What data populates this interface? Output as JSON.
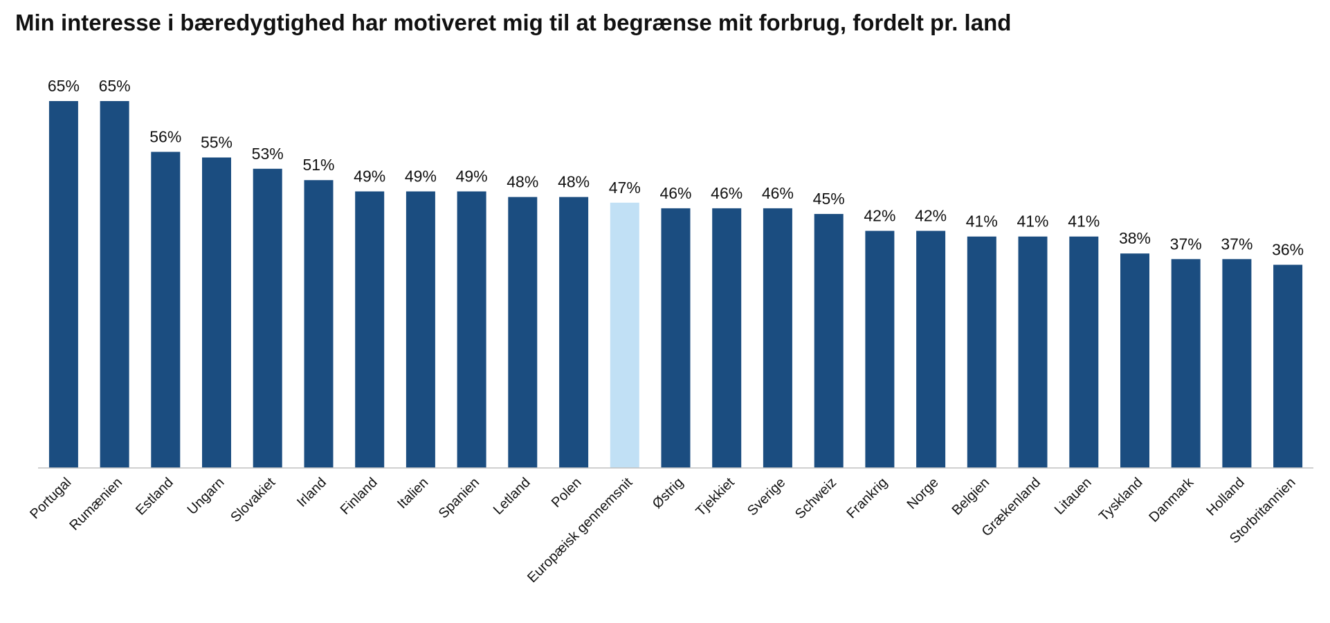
{
  "title": "Min interesse i bæredygtighed har motiveret mig til at begrænse mit forbrug, fordelt pr. land",
  "colors": {
    "bar": "#1b4d80",
    "highlight": "#c1e0f5",
    "axis": "#bfbfbf",
    "text": "#111111"
  },
  "chart_data": {
    "type": "bar",
    "title": "Min interesse i bæredygtighed har motiveret mig til at begrænse mit forbrug, fordelt pr. land",
    "xlabel": "",
    "ylabel": "",
    "ylim": [
      0,
      65
    ],
    "grid": false,
    "legend": "none",
    "highlight_category": "Europæisk gennemsnit",
    "categories": [
      "Portugal",
      "Rumænien",
      "Estland",
      "Ungarn",
      "Slovakiet",
      "Irland",
      "Finland",
      "Italien",
      "Spanien",
      "Letland",
      "Polen",
      "Europæisk gennemsnit",
      "Østrig",
      "Tjekkiet",
      "Sverige",
      "Schweiz",
      "Frankrig",
      "Norge",
      "Belgien",
      "Grækenland",
      "Litauen",
      "Tyskland",
      "Danmark",
      "Holland",
      "Storbritannien"
    ],
    "values": [
      65,
      65,
      56,
      55,
      53,
      51,
      49,
      49,
      49,
      48,
      48,
      47,
      46,
      46,
      46,
      45,
      42,
      42,
      41,
      41,
      41,
      38,
      37,
      37,
      36
    ],
    "value_labels": [
      "65%",
      "65%",
      "56%",
      "55%",
      "53%",
      "51%",
      "49%",
      "49%",
      "49%",
      "48%",
      "48%",
      "47%",
      "46%",
      "46%",
      "46%",
      "45%",
      "42%",
      "42%",
      "41%",
      "41%",
      "41%",
      "38%",
      "37%",
      "37%",
      "36%"
    ]
  }
}
